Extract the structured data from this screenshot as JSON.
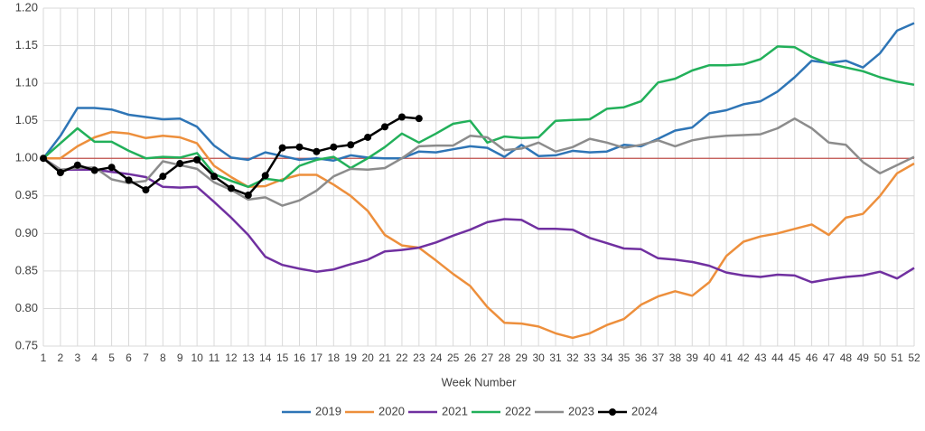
{
  "chart_data": {
    "type": "line",
    "x_label": "Week Number",
    "categories": [
      "1",
      "2",
      "3",
      "4",
      "5",
      "6",
      "7",
      "8",
      "9",
      "10",
      "11",
      "12",
      "13",
      "14",
      "15",
      "16",
      "17",
      "18",
      "19",
      "20",
      "21",
      "22",
      "23",
      "24",
      "25",
      "26",
      "27",
      "28",
      "29",
      "30",
      "31",
      "32",
      "33",
      "34",
      "35",
      "36",
      "37",
      "38",
      "39",
      "40",
      "41",
      "42",
      "43",
      "44",
      "45",
      "46",
      "47",
      "48",
      "49",
      "50",
      "51",
      "52"
    ],
    "ylim": [
      0.75,
      1.2
    ],
    "yticks": [
      {
        "value": 1.2,
        "label": "1.20"
      },
      1.15,
      {
        "value": 1.1,
        "label": "1.10"
      },
      1.05,
      {
        "value": 1.0,
        "label": "1.00"
      },
      0.95,
      {
        "value": 0.9,
        "label": "0.90"
      },
      0.85,
      {
        "value": 0.8,
        "label": "0.80"
      },
      0.75
    ],
    "grid": true,
    "reference_line": {
      "value": 1.0,
      "color": "#c0504d"
    },
    "legend": "bottom",
    "series": [
      {
        "name": "2019",
        "color": "#2e75b6",
        "values": [
          1.0,
          1.03,
          1.067,
          1.067,
          1.065,
          1.058,
          1.055,
          1.052,
          1.053,
          1.042,
          1.017,
          1.001,
          0.998,
          1.008,
          1.003,
          0.998,
          1.0,
          0.997,
          1.004,
          1.001,
          1.0,
          1.0,
          1.009,
          1.008,
          1.012,
          1.016,
          1.014,
          1.002,
          1.018,
          1.003,
          1.004,
          1.01,
          1.008,
          1.009,
          1.018,
          1.016,
          1.026,
          1.037,
          1.041,
          1.06,
          1.064,
          1.072,
          1.076,
          1.089,
          1.108,
          1.13,
          1.127,
          1.13,
          1.121,
          1.14,
          1.17,
          1.18
        ]
      },
      {
        "name": "2020",
        "color": "#ed8f3c",
        "values": [
          1.0,
          1.0,
          1.016,
          1.028,
          1.035,
          1.033,
          1.027,
          1.03,
          1.028,
          1.02,
          0.99,
          0.975,
          0.962,
          0.963,
          0.972,
          0.978,
          0.978,
          0.965,
          0.95,
          0.93,
          0.898,
          0.884,
          0.881,
          0.864,
          0.846,
          0.83,
          0.802,
          0.781,
          0.78,
          0.776,
          0.767,
          0.761,
          0.767,
          0.778,
          0.786,
          0.805,
          0.816,
          0.823,
          0.817,
          0.835,
          0.87,
          0.889,
          0.896,
          0.9,
          0.906,
          0.912,
          0.898,
          0.921,
          0.926,
          0.95,
          0.98,
          0.993
        ]
      },
      {
        "name": "2021",
        "color": "#7030a0",
        "values": [
          1.0,
          0.985,
          0.985,
          0.985,
          0.982,
          0.979,
          0.975,
          0.962,
          0.961,
          0.962,
          0.942,
          0.921,
          0.898,
          0.869,
          0.858,
          0.853,
          0.849,
          0.852,
          0.859,
          0.865,
          0.876,
          0.878,
          0.881,
          0.888,
          0.897,
          0.905,
          0.915,
          0.919,
          0.918,
          0.906,
          0.906,
          0.905,
          0.894,
          0.887,
          0.88,
          0.879,
          0.867,
          0.865,
          0.862,
          0.857,
          0.848,
          0.844,
          0.842,
          0.845,
          0.844,
          0.835,
          0.839,
          0.842,
          0.844,
          0.849,
          0.84,
          0.854
        ]
      },
      {
        "name": "2022",
        "color": "#22b05a",
        "values": [
          1.0,
          1.02,
          1.04,
          1.022,
          1.022,
          1.01,
          1.0,
          1.002,
          1.001,
          1.007,
          0.979,
          0.97,
          0.962,
          0.973,
          0.97,
          0.99,
          0.998,
          1.002,
          0.987,
          1.0,
          1.015,
          1.033,
          1.021,
          1.033,
          1.046,
          1.05,
          1.021,
          1.029,
          1.027,
          1.028,
          1.05,
          1.051,
          1.052,
          1.066,
          1.068,
          1.076,
          1.101,
          1.106,
          1.117,
          1.124,
          1.124,
          1.125,
          1.132,
          1.149,
          1.148,
          1.135,
          1.126,
          1.121,
          1.116,
          1.108,
          1.102,
          1.098
        ]
      },
      {
        "name": "2023",
        "color": "#8c8c8c",
        "values": [
          1.0,
          0.985,
          0.987,
          0.988,
          0.972,
          0.967,
          0.97,
          0.996,
          0.991,
          0.986,
          0.968,
          0.958,
          0.945,
          0.948,
          0.937,
          0.944,
          0.957,
          0.976,
          0.986,
          0.985,
          0.987,
          1.0,
          1.016,
          1.017,
          1.017,
          1.03,
          1.028,
          1.011,
          1.013,
          1.021,
          1.009,
          1.015,
          1.026,
          1.021,
          1.014,
          1.018,
          1.024,
          1.016,
          1.024,
          1.028,
          1.03,
          1.031,
          1.032,
          1.04,
          1.053,
          1.04,
          1.021,
          1.018,
          0.995,
          0.98,
          0.991,
          1.002
        ]
      },
      {
        "name": "2024",
        "color": "#000000",
        "marker": "circle",
        "values": [
          1.0,
          0.981,
          0.991,
          0.984,
          0.988,
          0.971,
          0.958,
          0.976,
          0.993,
          0.998,
          0.976,
          0.96,
          0.951,
          0.977,
          1.014,
          1.015,
          1.009,
          1.015,
          1.018,
          1.028,
          1.042,
          1.055,
          1.053,
          null,
          null,
          null,
          null,
          null,
          null,
          null,
          null,
          null,
          null,
          null,
          null,
          null,
          null,
          null,
          null,
          null,
          null,
          null,
          null,
          null,
          null,
          null,
          null,
          null,
          null,
          null,
          null,
          null
        ]
      }
    ]
  }
}
